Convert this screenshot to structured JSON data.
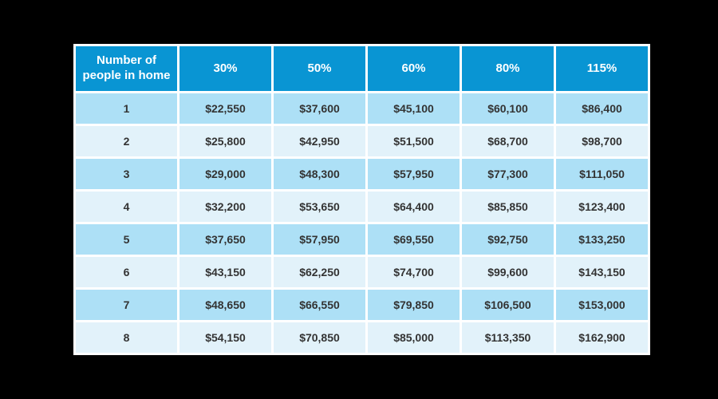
{
  "chart_data": {
    "type": "table",
    "title": "",
    "columns": [
      "Number of people in home",
      "30%",
      "50%",
      "60%",
      "80%",
      "115%"
    ],
    "rows": [
      [
        "1",
        "$22,550",
        "$37,600",
        "$45,100",
        "$60,100",
        "$86,400"
      ],
      [
        "2",
        "$25,800",
        "$42,950",
        "$51,500",
        "$68,700",
        "$98,700"
      ],
      [
        "3",
        "$29,000",
        "$48,300",
        "$57,950",
        "$77,300",
        "$111,050"
      ],
      [
        "4",
        "$32,200",
        "$53,650",
        "$64,400",
        "$85,850",
        "$123,400"
      ],
      [
        "5",
        "$37,650",
        "$57,950",
        "$69,550",
        "$92,750",
        "$133,250"
      ],
      [
        "6",
        "$43,150",
        "$62,250",
        "$74,700",
        "$99,600",
        "$143,150"
      ],
      [
        "7",
        "$48,650",
        "$66,550",
        "$79,850",
        "$106,500",
        "$153,000"
      ],
      [
        "8",
        "$54,150",
        "$70,850",
        "$85,000",
        "$113,350",
        "$162,900"
      ]
    ],
    "layout": {
      "grid": "white 3px gaps between cells",
      "row_striping": "odd rows medium blue, even rows pale blue",
      "background": "black page background"
    },
    "colors": {
      "header_bg": "#0995D3",
      "header_text": "#FFFFFF",
      "row_odd_bg": "#ADE0F6",
      "row_even_bg": "#E2F2FA",
      "cell_text": "#333333",
      "grid": "#FFFFFF",
      "page_bg": "#000000"
    }
  }
}
